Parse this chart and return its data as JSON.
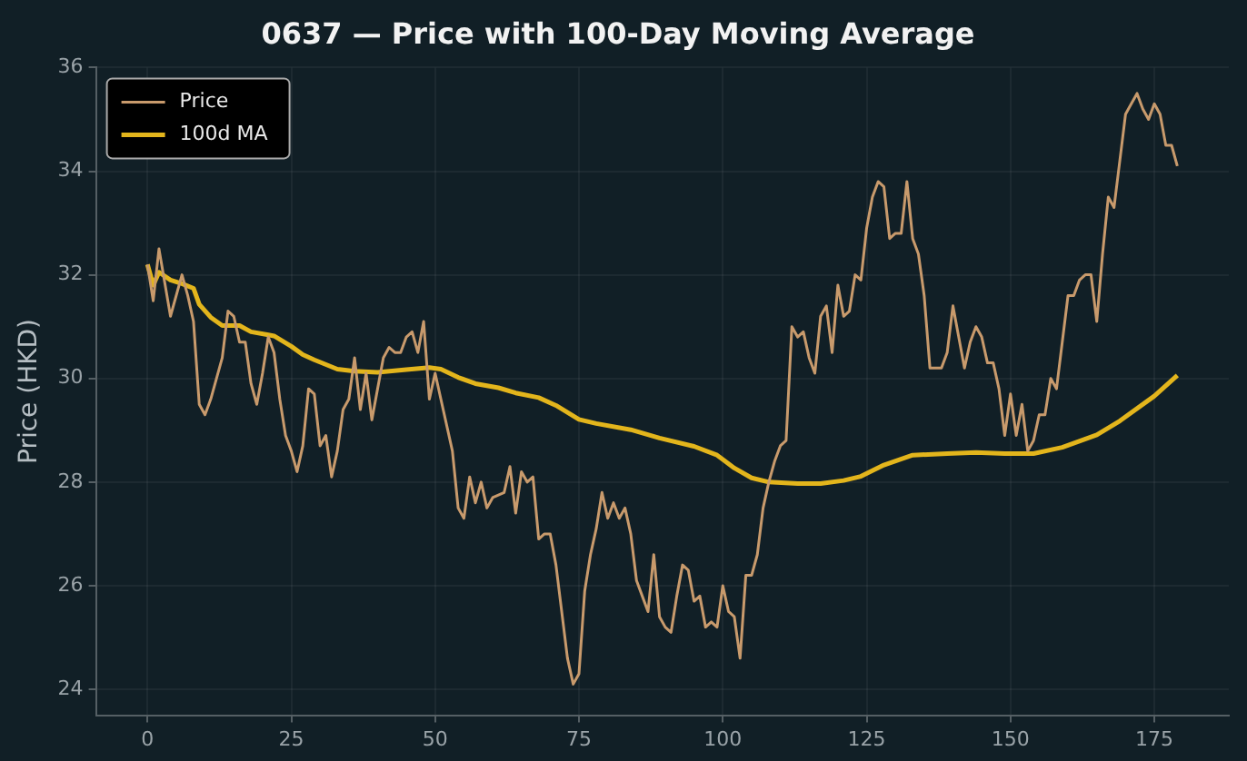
{
  "chart_data": {
    "type": "line",
    "title": "0637 — Price with 100-Day Moving Average",
    "ylabel": "Price (HKD)",
    "xlim": [
      -8.95,
      187.95
    ],
    "xticks": [
      0,
      25,
      50,
      75,
      100,
      125,
      150,
      175
    ],
    "ylim": [
      23.5,
      36
    ],
    "yticks": [
      24,
      26,
      28,
      30,
      32,
      34,
      36
    ],
    "grid": true,
    "legend": "top left",
    "series": [
      {
        "name": "Price",
        "color": "#c89a6c",
        "x": [
          0,
          1,
          2,
          4,
          6,
          7,
          8,
          9,
          10,
          11,
          13,
          14,
          15,
          16,
          17,
          18,
          19,
          20,
          21,
          22,
          23,
          24,
          25,
          26,
          27,
          28,
          29,
          30,
          31,
          32,
          33,
          34,
          35,
          36,
          37,
          38,
          39,
          40,
          41,
          42,
          43,
          44,
          45,
          46,
          47,
          48,
          49,
          50,
          51,
          53,
          54,
          55,
          56,
          57,
          58,
          59,
          60,
          62,
          63,
          64,
          65,
          66,
          67,
          68,
          69,
          70,
          71,
          72,
          73,
          74,
          75,
          76,
          77,
          78,
          79,
          80,
          81,
          82,
          83,
          84,
          85,
          86,
          87,
          88,
          89,
          90,
          91,
          92,
          93,
          94,
          95,
          96,
          97,
          98,
          99,
          100,
          101,
          102,
          103,
          104,
          105,
          106,
          107,
          108,
          109,
          110,
          111,
          112,
          113,
          114,
          115,
          116,
          117,
          118,
          119,
          120,
          121,
          122,
          123,
          124,
          125,
          126,
          127,
          128,
          129,
          130,
          131,
          132,
          133,
          134,
          135,
          136,
          137,
          138,
          139,
          140,
          141,
          142,
          143,
          144,
          145,
          146,
          147,
          148,
          149,
          150,
          151,
          152,
          153,
          154,
          155,
          156,
          157,
          158,
          159,
          160,
          161,
          162,
          163,
          164,
          165,
          166,
          167,
          168,
          169,
          170,
          171,
          172,
          173,
          174,
          175,
          176,
          177,
          178,
          179
        ],
        "values": [
          32.2,
          31.5,
          32.5,
          31.2,
          32.0,
          31.6,
          31.1,
          29.5,
          29.3,
          29.6,
          30.4,
          31.3,
          31.2,
          30.7,
          30.7,
          29.9,
          29.5,
          30.1,
          30.8,
          30.5,
          29.6,
          28.9,
          28.6,
          28.2,
          28.7,
          29.8,
          29.7,
          28.7,
          28.9,
          28.1,
          28.6,
          29.4,
          29.6,
          30.4,
          29.4,
          30.1,
          29.2,
          29.8,
          30.4,
          30.6,
          30.5,
          30.5,
          30.8,
          30.9,
          30.5,
          31.1,
          29.6,
          30.1,
          29.6,
          28.6,
          27.5,
          27.3,
          28.1,
          27.6,
          28.0,
          27.5,
          27.7,
          27.8,
          28.3,
          27.4,
          28.2,
          28.0,
          28.1,
          26.9,
          27.0,
          27.0,
          26.4,
          25.5,
          24.6,
          24.1,
          24.3,
          25.9,
          26.6,
          27.1,
          27.8,
          27.3,
          27.6,
          27.3,
          27.5,
          27.0,
          26.1,
          25.8,
          25.5,
          26.6,
          25.4,
          25.2,
          25.1,
          25.8,
          26.4,
          26.3,
          25.7,
          25.8,
          25.2,
          25.3,
          25.2,
          26.0,
          25.5,
          25.4,
          24.6,
          26.2,
          26.2,
          26.6,
          27.5,
          28.0,
          28.4,
          28.7,
          28.8,
          31.0,
          30.8,
          30.9,
          30.4,
          30.1,
          31.2,
          31.4,
          30.5,
          31.8,
          31.2,
          31.3,
          32.0,
          31.9,
          32.9,
          33.5,
          33.8,
          33.7,
          32.7,
          32.8,
          32.8,
          33.8,
          32.7,
          32.4,
          31.6,
          30.2,
          30.2,
          30.2,
          30.5,
          31.4,
          30.8,
          30.2,
          30.7,
          31.0,
          30.8,
          30.3,
          30.3,
          29.8,
          28.9,
          29.7,
          28.9,
          29.5,
          28.6,
          28.8,
          29.3,
          29.3,
          30.0,
          29.8,
          30.7,
          31.6,
          31.6,
          31.9,
          32.0,
          32.0,
          31.1,
          32.4,
          33.5,
          33.3,
          34.2,
          35.1,
          35.3,
          35.5,
          35.2,
          35.0,
          35.3,
          35.1,
          34.5,
          34.5,
          34.1
        ]
      },
      {
        "name": "100d MA",
        "color": "#e3b51c",
        "x": [
          0,
          1,
          2,
          4,
          6,
          8,
          9,
          11,
          13,
          16,
          18,
          21,
          22,
          25,
          27,
          29,
          33,
          36,
          40,
          45,
          49,
          51,
          54,
          57,
          61,
          64,
          68,
          71,
          75,
          78,
          84,
          89,
          95,
          99,
          102,
          105,
          108,
          113,
          117,
          121,
          124,
          128,
          133,
          139,
          144,
          149,
          154,
          159,
          165,
          169,
          175,
          179
        ],
        "values": [
          32.2,
          31.8,
          32.05,
          31.9,
          31.83,
          31.74,
          31.43,
          31.18,
          31.02,
          31.02,
          30.9,
          30.84,
          30.82,
          30.62,
          30.46,
          30.36,
          30.18,
          30.14,
          30.12,
          30.17,
          30.21,
          30.18,
          30.02,
          29.9,
          29.82,
          29.72,
          29.63,
          29.48,
          29.21,
          29.13,
          29.01,
          28.85,
          28.69,
          28.52,
          28.27,
          28.08,
          28.0,
          27.97,
          27.97,
          28.03,
          28.11,
          28.33,
          28.52,
          28.55,
          28.57,
          28.55,
          28.55,
          28.67,
          28.91,
          29.18,
          29.66,
          30.06
        ]
      }
    ]
  }
}
